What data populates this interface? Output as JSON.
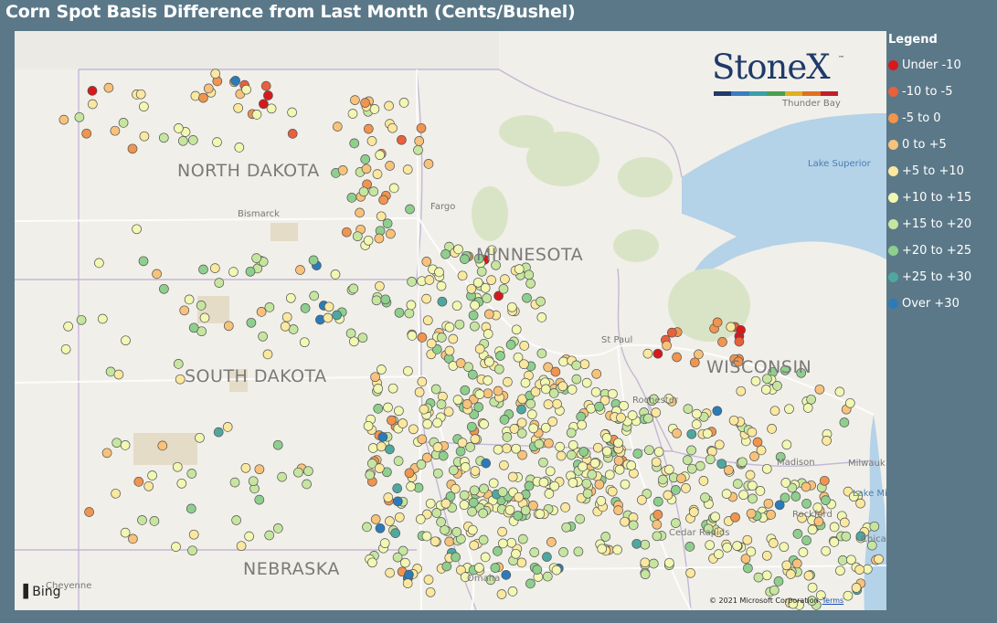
{
  "title": "Corn Spot Basis Difference from Last Month (Cents/Bushel)",
  "legend": {
    "title": "Legend",
    "items": [
      {
        "label": "Under -10",
        "color": "#d7191c"
      },
      {
        "label": "-10 to -5",
        "color": "#e8603c"
      },
      {
        "label": "-5 to 0",
        "color": "#f0944e"
      },
      {
        "label": "0 to +5",
        "color": "#f8c27a"
      },
      {
        "label": "+5 to +10",
        "color": "#fbe89f"
      },
      {
        "label": "+10 to +15",
        "color": "#f2f7b2"
      },
      {
        "label": "+15 to +20",
        "color": "#c6e6a0"
      },
      {
        "label": "+20 to +25",
        "color": "#8fcf8e"
      },
      {
        "label": "+25 to +30",
        "color": "#4fa89f"
      },
      {
        "label": "Over +30",
        "color": "#2b7bba"
      }
    ]
  },
  "map": {
    "states": {
      "nd": "NORTH DAKOTA",
      "sd": "SOUTH DAKOTA",
      "mn": "MINNESOTA",
      "wi": "WISCONSIN",
      "ne": "NEBRASKA"
    },
    "cities": {
      "bismarck": "Bismarck",
      "fargo": "Fargo",
      "stpaul": "St Paul",
      "rochester": "Rochester",
      "madison": "Madison",
      "milwaukee": "Milwauk",
      "rockford": "Rockford",
      "cedar_rapids": "Cedar Rapids",
      "chicago": "Chica",
      "cheyenne": "Cheyenne",
      "omaha": "Omaha",
      "thunder_bay": "Thunder Bay"
    },
    "water": {
      "lake_superior": "Lake Superior",
      "lake_michigan": "Lake Mi"
    },
    "logo": {
      "text": "StoneX",
      "tm": "™",
      "colors": [
        "#1f3a6b",
        "#3a7dc0",
        "#3aa0a8",
        "#4aa050",
        "#e0b020",
        "#e07020",
        "#c0202a"
      ]
    },
    "bing": "Bing",
    "copyright": "© 2021 Microsoft Corporation",
    "terms": "Terms"
  }
}
